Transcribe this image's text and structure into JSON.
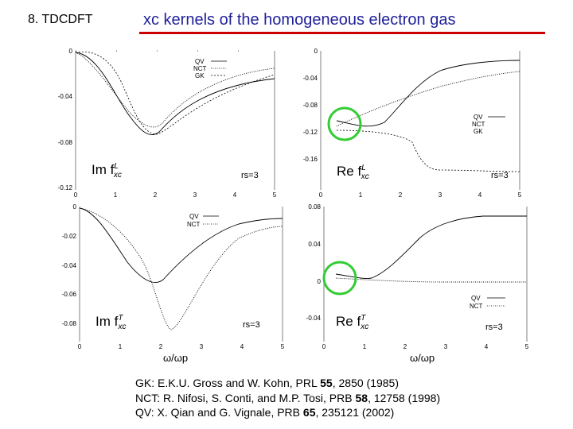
{
  "header": {
    "section": "8. TDCDFT",
    "title": "xc kernels of the homogeneous electron gas",
    "rule_color": "#cc0000",
    "title_color": "#1f1f99"
  },
  "figure": {
    "panels": [
      {
        "id": "im-fL",
        "y_ticks": [
          "0",
          "-0.04",
          "-0.08",
          "-0.12"
        ],
        "x_ticks": [
          "0",
          "1",
          "2",
          "3",
          "4",
          "5"
        ],
        "legend": [
          "QV",
          "NCT",
          "GK"
        ],
        "panel_label": "Im f",
        "panel_sup": "L",
        "panel_sub": "xc",
        "rs_label": "rs=3"
      },
      {
        "id": "re-fL",
        "y_ticks": [
          "0",
          "-0.04",
          "-0.08",
          "-0.12",
          "-0.16"
        ],
        "x_ticks": [
          "0",
          "1",
          "2",
          "3",
          "4",
          "5"
        ],
        "legend": [
          "QV",
          "NCT",
          "GK"
        ],
        "panel_label": "Re f",
        "panel_sup": "L",
        "panel_sub": "xc",
        "rs_label": "rs=3"
      },
      {
        "id": "im-fT",
        "y_ticks": [
          "0",
          "-0.02",
          "-0.04",
          "-0.06",
          "-0.08"
        ],
        "x_ticks": [
          "0",
          "1",
          "2",
          "3",
          "4",
          "5"
        ],
        "legend": [
          "QV",
          "NCT"
        ],
        "panel_label": "Im f",
        "panel_sup": "T",
        "panel_sub": "xc",
        "rs_label": "rs=3"
      },
      {
        "id": "re-fT",
        "y_ticks": [
          "0.08",
          "0.04",
          "0",
          "-0.04"
        ],
        "x_ticks": [
          "0",
          "1",
          "2",
          "3",
          "4",
          "5"
        ],
        "legend": [
          "QV",
          "NCT"
        ],
        "panel_label": "Re f",
        "panel_sup": "T",
        "panel_sub": "xc",
        "rs_label": "rs=3"
      }
    ],
    "x_label_left": "ω/ωp",
    "x_label_right": "ω/ωp",
    "highlight_color": "#33cc33"
  },
  "references": [
    {
      "abbr": "GK",
      "text_before": ": E.K.U. Gross and W. Kohn, PRL ",
      "vol": "55",
      "text_after": ", 2850 (1985)"
    },
    {
      "abbr": "NCT",
      "text_before": ": R. Nifosi, S. Conti, and M.P. Tosi, PRB ",
      "vol": "58",
      "text_after": ", 12758 (1998)"
    },
    {
      "abbr": "QV",
      "text_before": ": X. Qian and G. Vignale, PRB ",
      "vol": "65",
      "text_after": ", 235121 (2002)"
    }
  ]
}
